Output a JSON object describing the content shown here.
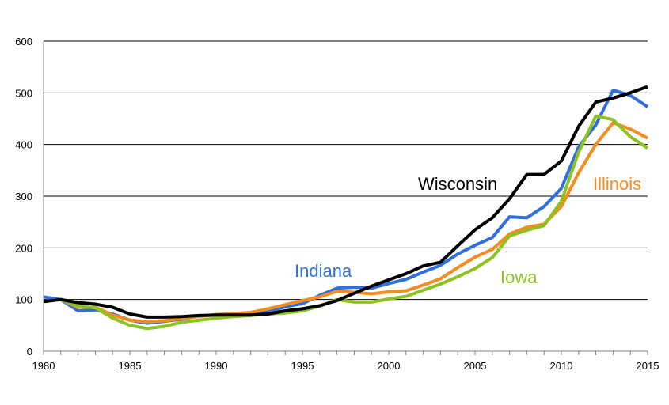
{
  "chart_data": {
    "type": "line",
    "title": "",
    "xlabel": "",
    "ylabel": "",
    "xlim": [
      1980,
      2015
    ],
    "ylim": [
      0,
      600
    ],
    "grid": true,
    "legend": "inline labels",
    "x_ticks": [
      1980,
      1985,
      1990,
      1995,
      2000,
      2005,
      2010,
      2015
    ],
    "y_ticks": [
      0,
      100,
      200,
      300,
      400,
      500,
      600
    ],
    "x": [
      1980,
      1981,
      1982,
      1983,
      1984,
      1985,
      1986,
      1987,
      1988,
      1989,
      1990,
      1991,
      1992,
      1993,
      1994,
      1995,
      1996,
      1997,
      1998,
      1999,
      2000,
      2001,
      2002,
      2003,
      2004,
      2005,
      2006,
      2007,
      2008,
      2009,
      2010,
      2011,
      2012,
      2013,
      2014,
      2015
    ],
    "series": [
      {
        "name": "Indiana",
        "color": "#2f6fe0",
        "values": [
          105,
          100,
          78,
          80,
          72,
          60,
          54,
          58,
          62,
          68,
          70,
          69,
          71,
          76,
          86,
          92,
          108,
          122,
          124,
          122,
          131,
          139,
          153,
          166,
          188,
          205,
          220,
          260,
          258,
          280,
          315,
          395,
          438,
          505,
          495,
          473
        ]
      },
      {
        "name": "Illinois",
        "color": "#f68b1f",
        "values": [
          96,
          100,
          85,
          85,
          70,
          60,
          57,
          59,
          63,
          67,
          71,
          73,
          75,
          82,
          90,
          98,
          105,
          116,
          114,
          111,
          115,
          117,
          128,
          140,
          162,
          182,
          197,
          227,
          240,
          246,
          280,
          345,
          400,
          442,
          430,
          412
        ]
      },
      {
        "name": "Iowa",
        "color": "#8dc21f",
        "values": [
          96,
          100,
          87,
          84,
          64,
          50,
          44,
          48,
          56,
          60,
          64,
          67,
          69,
          72,
          74,
          78,
          87,
          100,
          95,
          95,
          101,
          106,
          118,
          130,
          144,
          160,
          181,
          223,
          234,
          243,
          290,
          385,
          455,
          448,
          415,
          393
        ]
      },
      {
        "name": "Wisconsin",
        "color": "#000000",
        "values": [
          96,
          100,
          94,
          91,
          85,
          72,
          66,
          66,
          67,
          69,
          70,
          70,
          70,
          72,
          78,
          82,
          88,
          98,
          112,
          126,
          138,
          150,
          165,
          172,
          204,
          235,
          258,
          295,
          342,
          342,
          368,
          435,
          482,
          490,
          500,
          512
        ]
      }
    ]
  }
}
